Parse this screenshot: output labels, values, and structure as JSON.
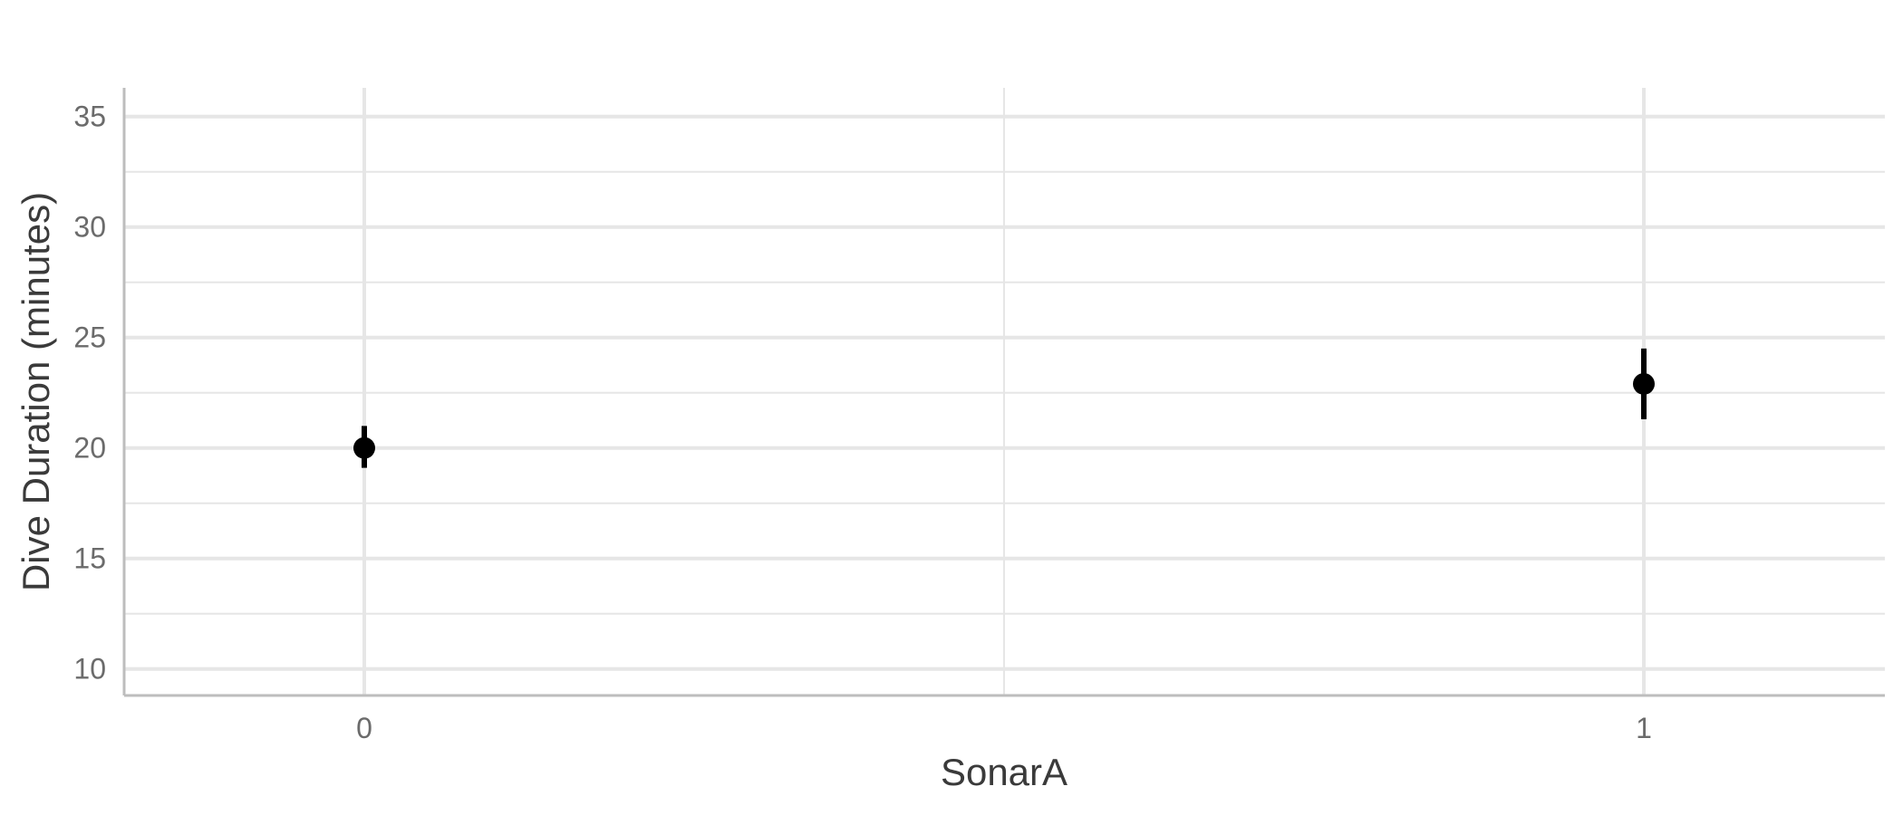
{
  "chart_data": {
    "type": "scatter",
    "subtype": "point-with-errorbars",
    "title": "",
    "xlabel": "SonarA",
    "ylabel": "Dive Duration (minutes)",
    "categories": [
      "0",
      "1"
    ],
    "points": [
      {
        "x": "0",
        "y": 20.0,
        "lower": 19.1,
        "upper": 21.0
      },
      {
        "x": "1",
        "y": 22.9,
        "lower": 21.3,
        "upper": 24.5
      }
    ],
    "ylim": [
      8.8,
      36.3
    ],
    "yticks": [
      10,
      15,
      20,
      25,
      30,
      35
    ],
    "yticks_minor": [
      12.5,
      17.5,
      22.5,
      27.5,
      32.5
    ],
    "grid": true,
    "legend": "none",
    "colors": {
      "point": "#000000",
      "grid": "#e6e6e6",
      "axis": "#bdbdbd"
    }
  }
}
